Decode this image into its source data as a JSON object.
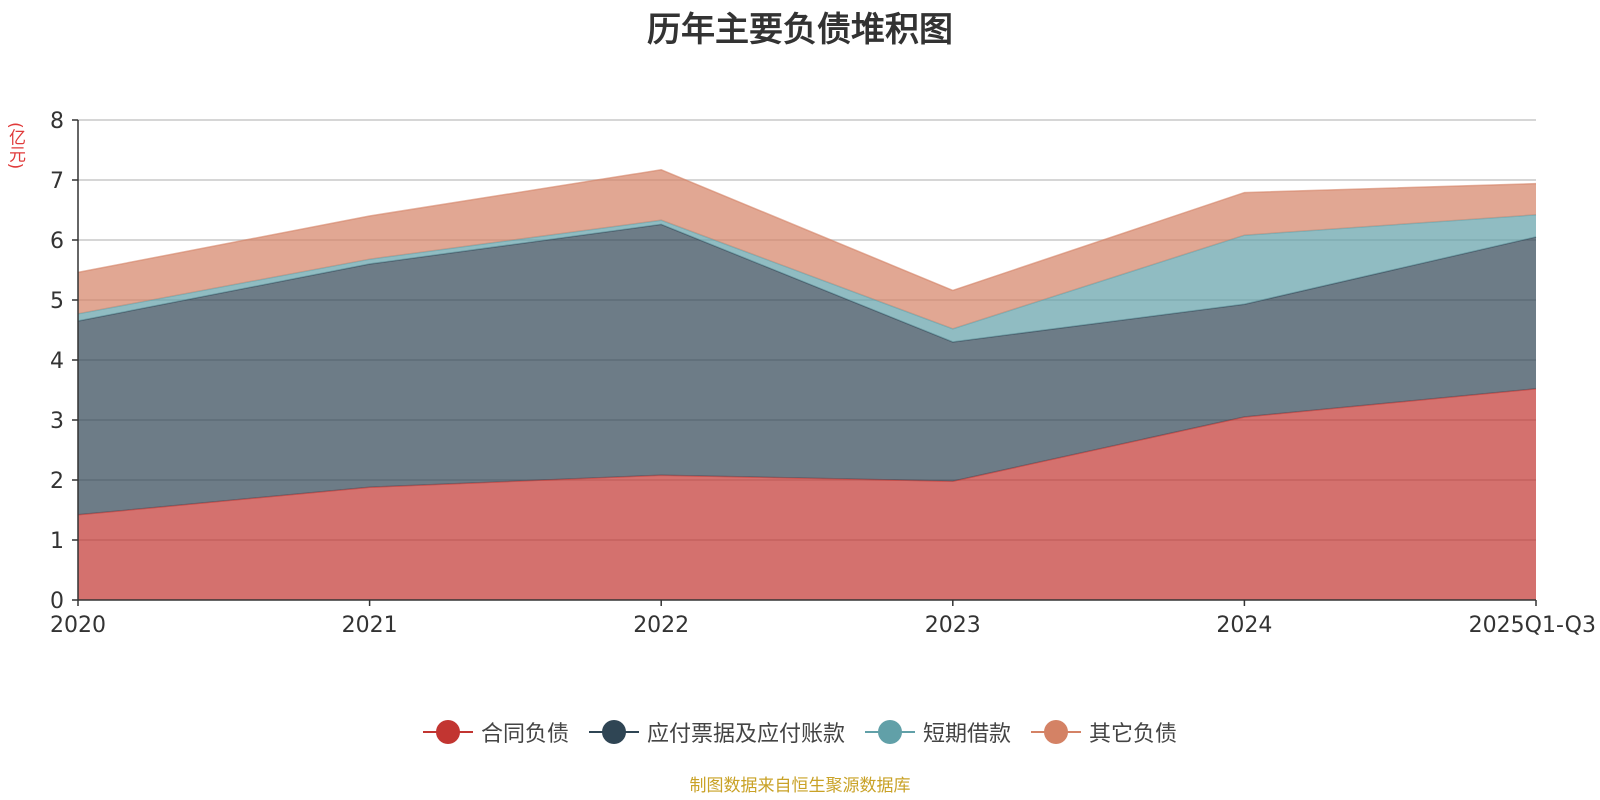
{
  "chart_data": {
    "type": "area",
    "stacked": true,
    "title": "历年主要负债堆积图",
    "unit_label": "(亿元)",
    "categories": [
      "2020",
      "2021",
      "2022",
      "2023",
      "2024",
      "2025Q1-Q3"
    ],
    "ylim": [
      0,
      8
    ],
    "yticks": [
      0,
      1,
      2,
      3,
      4,
      5,
      6,
      7,
      8
    ],
    "grid": true,
    "legend_position": "bottom",
    "series": [
      {
        "name": "合同负债",
        "color": "#c23531",
        "values": [
          1.42,
          1.88,
          2.08,
          1.98,
          3.05,
          3.52
        ]
      },
      {
        "name": "应付票据及应付账款",
        "color": "#2f4554",
        "values": [
          3.23,
          3.72,
          4.18,
          2.32,
          1.88,
          2.53
        ]
      },
      {
        "name": "短期借款",
        "color": "#61a0a8",
        "values": [
          0.12,
          0.08,
          0.07,
          0.22,
          1.15,
          0.37
        ]
      },
      {
        "name": "其它负债",
        "color": "#d48265",
        "values": [
          0.69,
          0.72,
          0.84,
          0.64,
          0.71,
          0.52
        ]
      }
    ],
    "source": "制图数据来自恒生聚源数据库"
  }
}
